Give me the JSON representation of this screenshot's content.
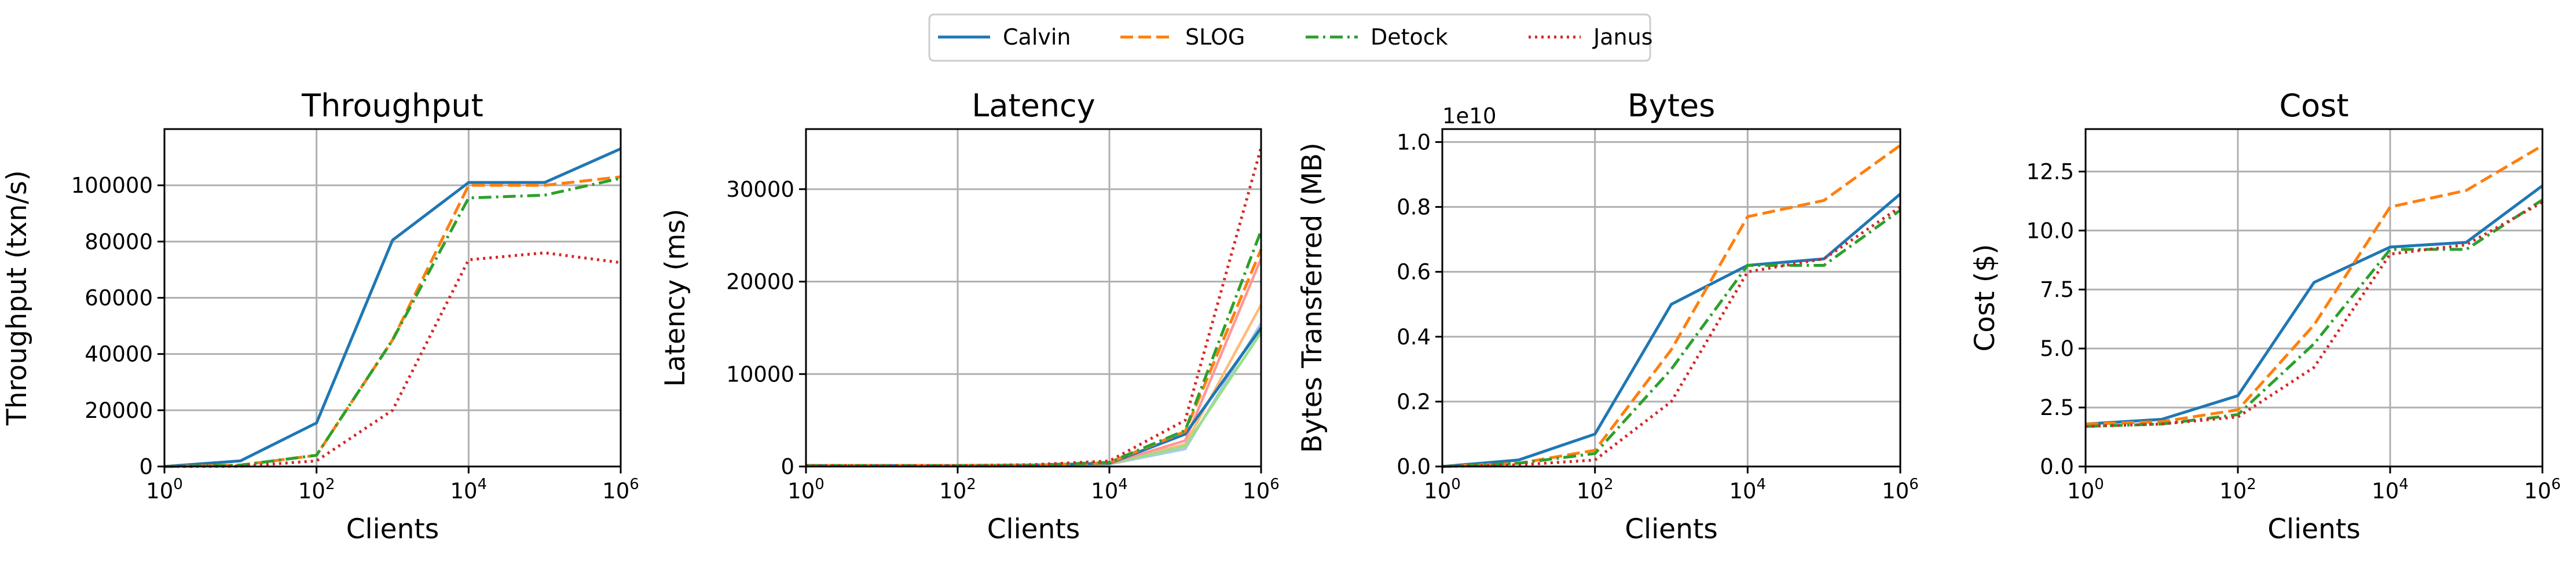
{
  "legend": {
    "placement": "top-center",
    "entries": [
      {
        "name": "Calvin",
        "color": "#1f77b4",
        "dash": "solid"
      },
      {
        "name": "SLOG",
        "color": "#ff7f0e",
        "dash": "dashed"
      },
      {
        "name": "Detock",
        "color": "#2ca02c",
        "dash": "dashdot"
      },
      {
        "name": "Janus",
        "color": "#d62728",
        "dash": "dotted"
      }
    ]
  },
  "chart_data": [
    {
      "type": "line",
      "title": "Throughput",
      "xlabel": "Clients",
      "ylabel": "Throughput (txn/s)",
      "xscale": "log",
      "xlim": [
        1,
        1000000
      ],
      "ylim": [
        0,
        120000
      ],
      "x": [
        1,
        10,
        100,
        1000,
        10000,
        100000,
        1000000
      ],
      "x_ticks": [
        1,
        100,
        10000,
        1000000
      ],
      "x_tick_labels": [
        [
          "10",
          "0"
        ],
        [
          "10",
          "2"
        ],
        [
          "10",
          "4"
        ],
        [
          "10",
          "6"
        ]
      ],
      "y_ticks": [
        0,
        20000,
        40000,
        60000,
        80000,
        100000
      ],
      "y_tick_labels": [
        "0",
        "20000",
        "40000",
        "60000",
        "80000",
        "100000"
      ],
      "grid": true,
      "series": [
        {
          "name": "Calvin",
          "values": [
            0,
            2000,
            15500,
            80500,
            101000,
            101000,
            113000
          ]
        },
        {
          "name": "SLOG",
          "values": [
            0,
            500,
            4000,
            45000,
            100000,
            100000,
            103000
          ]
        },
        {
          "name": "Detock",
          "values": [
            0,
            500,
            4000,
            45000,
            95500,
            96500,
            102500
          ]
        },
        {
          "name": "Janus",
          "values": [
            0,
            100,
            2000,
            20000,
            73500,
            76000,
            72500
          ]
        }
      ]
    },
    {
      "type": "line",
      "title": "Latency",
      "xlabel": "Clients",
      "ylabel": "Latency (ms)",
      "xscale": "log",
      "xlim": [
        1,
        1000000
      ],
      "ylim": [
        0,
        36500
      ],
      "x": [
        1,
        10,
        100,
        1000,
        10000,
        100000,
        1000000
      ],
      "x_ticks": [
        1,
        100,
        10000,
        1000000
      ],
      "x_tick_labels": [
        [
          "10",
          "0"
        ],
        [
          "10",
          "2"
        ],
        [
          "10",
          "4"
        ],
        [
          "10",
          "6"
        ]
      ],
      "y_ticks": [
        0,
        10000,
        20000,
        30000
      ],
      "y_tick_labels": [
        "0",
        "10000",
        "20000",
        "30000"
      ],
      "grid": true,
      "series": [
        {
          "name": "Calvin",
          "values": [
            100,
            100,
            100,
            150,
            350,
            3500,
            15000
          ]
        },
        {
          "name": "SLOG",
          "values": [
            100,
            100,
            100,
            150,
            400,
            3800,
            23500
          ]
        },
        {
          "name": "Detock",
          "values": [
            100,
            100,
            100,
            150,
            450,
            3900,
            25500
          ]
        },
        {
          "name": "Janus",
          "values": [
            100,
            100,
            100,
            200,
            600,
            5000,
            34500
          ]
        }
      ],
      "extra_lines": [
        {
          "color": "#aec7e8",
          "values": [
            100,
            100,
            100,
            120,
            250,
            1900,
            15500
          ]
        },
        {
          "color": "#ffbb78",
          "values": [
            100,
            100,
            100,
            120,
            300,
            2400,
            17500
          ]
        },
        {
          "color": "#98df8a",
          "values": [
            100,
            100,
            100,
            120,
            280,
            2200,
            14500
          ]
        },
        {
          "color": "#ff9896",
          "values": [
            100,
            100,
            100,
            130,
            320,
            2800,
            22500
          ]
        }
      ]
    },
    {
      "type": "line",
      "title": "Bytes",
      "xlabel": "Clients",
      "ylabel": "Bytes Transferred (MB)",
      "offset_text": "1e10",
      "xscale": "log",
      "xlim": [
        1,
        1000000
      ],
      "ylim": [
        0,
        1.04
      ],
      "x": [
        1,
        10,
        100,
        1000,
        10000,
        100000,
        1000000
      ],
      "x_ticks": [
        1,
        100,
        10000,
        1000000
      ],
      "x_tick_labels": [
        [
          "10",
          "0"
        ],
        [
          "10",
          "2"
        ],
        [
          "10",
          "4"
        ],
        [
          "10",
          "6"
        ]
      ],
      "y_ticks": [
        0.0,
        0.2,
        0.4,
        0.6,
        0.8,
        1.0
      ],
      "y_tick_labels": [
        "0.0",
        "0.2",
        "0.4",
        "0.6",
        "0.8",
        "1.0"
      ],
      "grid": true,
      "series": [
        {
          "name": "Calvin",
          "values": [
            0.0,
            0.02,
            0.1,
            0.5,
            0.62,
            0.64,
            0.84
          ]
        },
        {
          "name": "SLOG",
          "values": [
            0.0,
            0.01,
            0.05,
            0.36,
            0.77,
            0.82,
            0.99
          ]
        },
        {
          "name": "Detock",
          "values": [
            0.0,
            0.01,
            0.04,
            0.3,
            0.62,
            0.62,
            0.79
          ]
        },
        {
          "name": "Janus",
          "values": [
            0.0,
            0.005,
            0.02,
            0.2,
            0.6,
            0.64,
            0.8
          ]
        }
      ]
    },
    {
      "type": "line",
      "title": "Cost",
      "xlabel": "Clients",
      "ylabel": "Cost ($)",
      "xscale": "log",
      "xlim": [
        1,
        1000000
      ],
      "ylim": [
        0,
        14.3
      ],
      "x": [
        1,
        10,
        100,
        1000,
        10000,
        100000,
        1000000
      ],
      "x_ticks": [
        1,
        100,
        10000,
        1000000
      ],
      "x_tick_labels": [
        [
          "10",
          "0"
        ],
        [
          "10",
          "2"
        ],
        [
          "10",
          "4"
        ],
        [
          "10",
          "6"
        ]
      ],
      "y_ticks": [
        0.0,
        2.5,
        5.0,
        7.5,
        10.0,
        12.5
      ],
      "y_tick_labels": [
        "0.0",
        "2.5",
        "5.0",
        "7.5",
        "10.0",
        "12.5"
      ],
      "grid": true,
      "series": [
        {
          "name": "Calvin",
          "values": [
            1.8,
            2.0,
            3.0,
            7.8,
            9.3,
            9.5,
            11.9
          ]
        },
        {
          "name": "SLOG",
          "values": [
            1.8,
            1.9,
            2.4,
            6.0,
            11.0,
            11.7,
            13.6
          ]
        },
        {
          "name": "Detock",
          "values": [
            1.7,
            1.8,
            2.2,
            5.2,
            9.2,
            9.2,
            11.3
          ]
        },
        {
          "name": "Janus",
          "values": [
            1.7,
            1.8,
            2.1,
            4.2,
            9.0,
            9.4,
            11.2
          ]
        }
      ]
    }
  ]
}
